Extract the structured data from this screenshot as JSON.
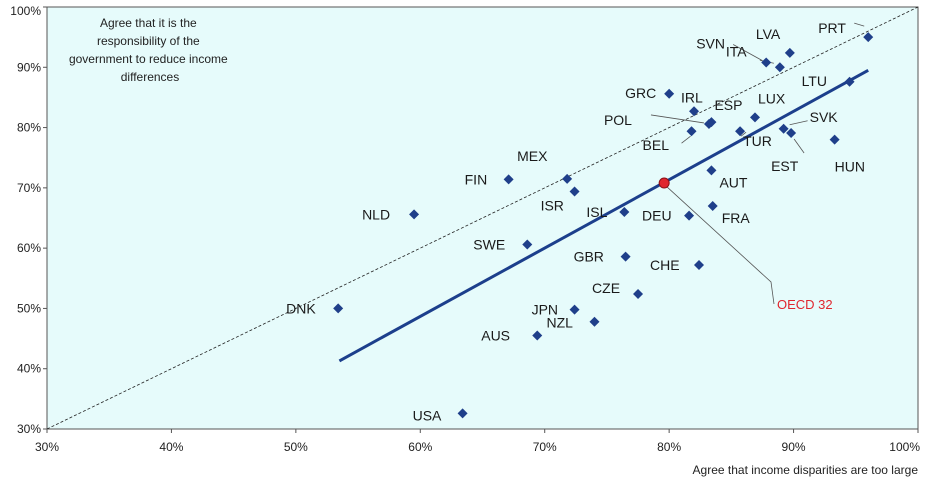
{
  "chart_data": {
    "type": "scatter",
    "xlabel": "Agree that income disparities are too large",
    "ylabel": "",
    "annotation": [
      "Agree that it is the",
      "responsibility of the",
      "government to reduce income",
      "differences"
    ],
    "xlim": [
      30,
      100
    ],
    "ylim": [
      30,
      100
    ],
    "x_ticks": [
      "30%",
      "40%",
      "50%",
      "60%",
      "70%",
      "80%",
      "90%",
      "100%"
    ],
    "y_ticks": [
      "30%",
      "40%",
      "50%",
      "60%",
      "70%",
      "80%",
      "90%",
      "100%"
    ],
    "diagonal_line": {
      "from": [
        30,
        30
      ],
      "to": [
        100,
        100
      ],
      "style": "dashed"
    },
    "trend_line": {
      "from": [
        53.5,
        41.3
      ],
      "to": [
        96,
        89.5
      ],
      "color": "#1c3f8c"
    },
    "highlight": {
      "label": "OECD 32",
      "x": 79.6,
      "y": 70.8,
      "color": "#e0262e"
    },
    "points": [
      {
        "label": "PRT",
        "x": 96.0,
        "y": 95.0
      },
      {
        "label": "LVA",
        "x": 89.7,
        "y": 92.4
      },
      {
        "label": "SVN",
        "x": 87.8,
        "y": 90.8
      },
      {
        "label": "ITA",
        "x": 88.9,
        "y": 90.0
      },
      {
        "label": "LTU",
        "x": 94.5,
        "y": 87.6
      },
      {
        "label": "GRC",
        "x": 80.0,
        "y": 85.6
      },
      {
        "label": "IRL",
        "x": 82.0,
        "y": 82.7
      },
      {
        "label": "LUX",
        "x": 86.9,
        "y": 81.7
      },
      {
        "label": "ESP",
        "x": 83.4,
        "y": 80.9
      },
      {
        "label": "POL",
        "x": 83.2,
        "y": 80.6
      },
      {
        "label": "SVK",
        "x": 89.2,
        "y": 79.8
      },
      {
        "label": "BEL",
        "x": 81.8,
        "y": 79.4
      },
      {
        "label": "TUR",
        "x": 85.7,
        "y": 79.4
      },
      {
        "label": "EST",
        "x": 89.8,
        "y": 79.1
      },
      {
        "label": "HUN",
        "x": 93.3,
        "y": 78.0
      },
      {
        "label": "AUT",
        "x": 83.4,
        "y": 72.9
      },
      {
        "label": "MEX",
        "x": 71.8,
        "y": 71.5
      },
      {
        "label": "FIN",
        "x": 67.1,
        "y": 71.4
      },
      {
        "label": "ISR",
        "x": 72.4,
        "y": 69.4
      },
      {
        "label": "FRA",
        "x": 83.5,
        "y": 67.0
      },
      {
        "label": "ISL",
        "x": 76.4,
        "y": 66.0
      },
      {
        "label": "NLD",
        "x": 59.5,
        "y": 65.6
      },
      {
        "label": "DEU",
        "x": 81.6,
        "y": 65.4
      },
      {
        "label": "SWE",
        "x": 68.6,
        "y": 60.6
      },
      {
        "label": "GBR",
        "x": 76.5,
        "y": 58.6
      },
      {
        "label": "CHE",
        "x": 82.4,
        "y": 57.2
      },
      {
        "label": "CZE",
        "x": 77.5,
        "y": 52.4
      },
      {
        "label": "DNK",
        "x": 53.4,
        "y": 50.0
      },
      {
        "label": "JPN",
        "x": 72.4,
        "y": 49.8
      },
      {
        "label": "NZL",
        "x": 74.0,
        "y": 47.8
      },
      {
        "label": "AUS",
        "x": 69.4,
        "y": 45.5
      },
      {
        "label": "USA",
        "x": 63.4,
        "y": 32.6
      }
    ],
    "grid": false,
    "colors": {
      "plot_background": "#e6fbfb",
      "marker": "#1f3f8a",
      "trend": "#1c3f8c",
      "diagonal": "#222222",
      "highlight": "#e0262e",
      "leader": "#555555"
    }
  }
}
